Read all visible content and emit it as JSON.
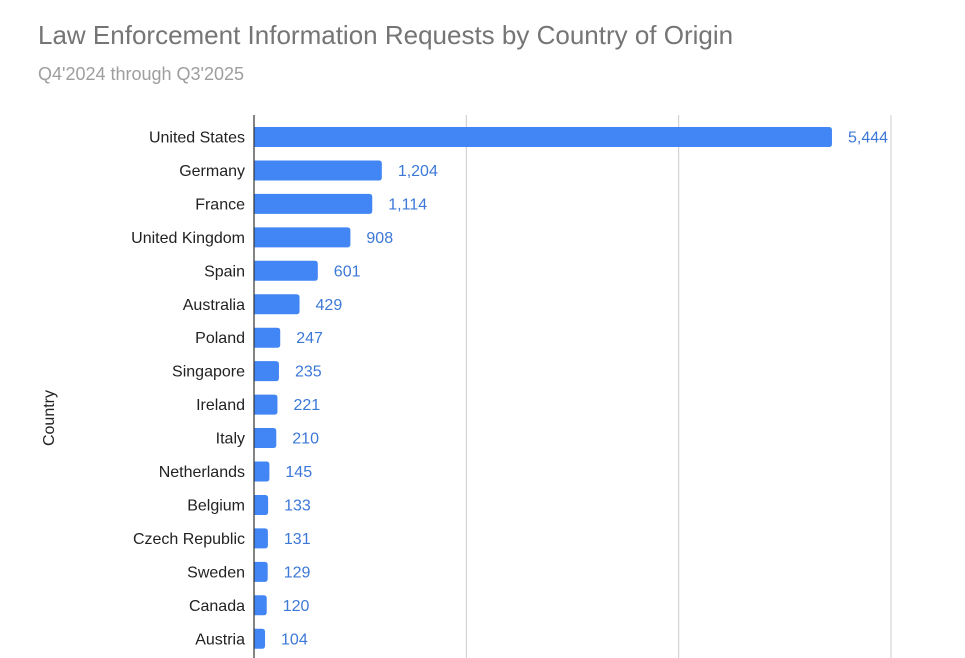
{
  "chart_data": {
    "type": "bar",
    "orientation": "horizontal",
    "title": "Law Enforcement Information Requests by Country of Origin",
    "subtitle": "Q4'2024 through Q3'2025",
    "ylabel": "Country",
    "xlabel": "",
    "categories": [
      "United States",
      "Germany",
      "France",
      "United Kingdom",
      "Spain",
      "Australia",
      "Poland",
      "Singapore",
      "Ireland",
      "Italy",
      "Netherlands",
      "Belgium",
      "Czech Republic",
      "Sweden",
      "Canada",
      "Austria"
    ],
    "values": [
      5444,
      1204,
      1114,
      908,
      601,
      429,
      247,
      235,
      221,
      210,
      145,
      133,
      131,
      129,
      120,
      104
    ],
    "value_labels": [
      "5,444",
      "1,204",
      "1,114",
      "908",
      "601",
      "429",
      "247",
      "235",
      "221",
      "210",
      "145",
      "133",
      "131",
      "129",
      "120",
      "104"
    ],
    "xlim": [
      0,
      6000
    ],
    "gridlines": [
      2000,
      4000,
      6000
    ],
    "grid": true,
    "legend": "none",
    "bar_color": "#4285f4",
    "label_color": "#3c78d8"
  }
}
